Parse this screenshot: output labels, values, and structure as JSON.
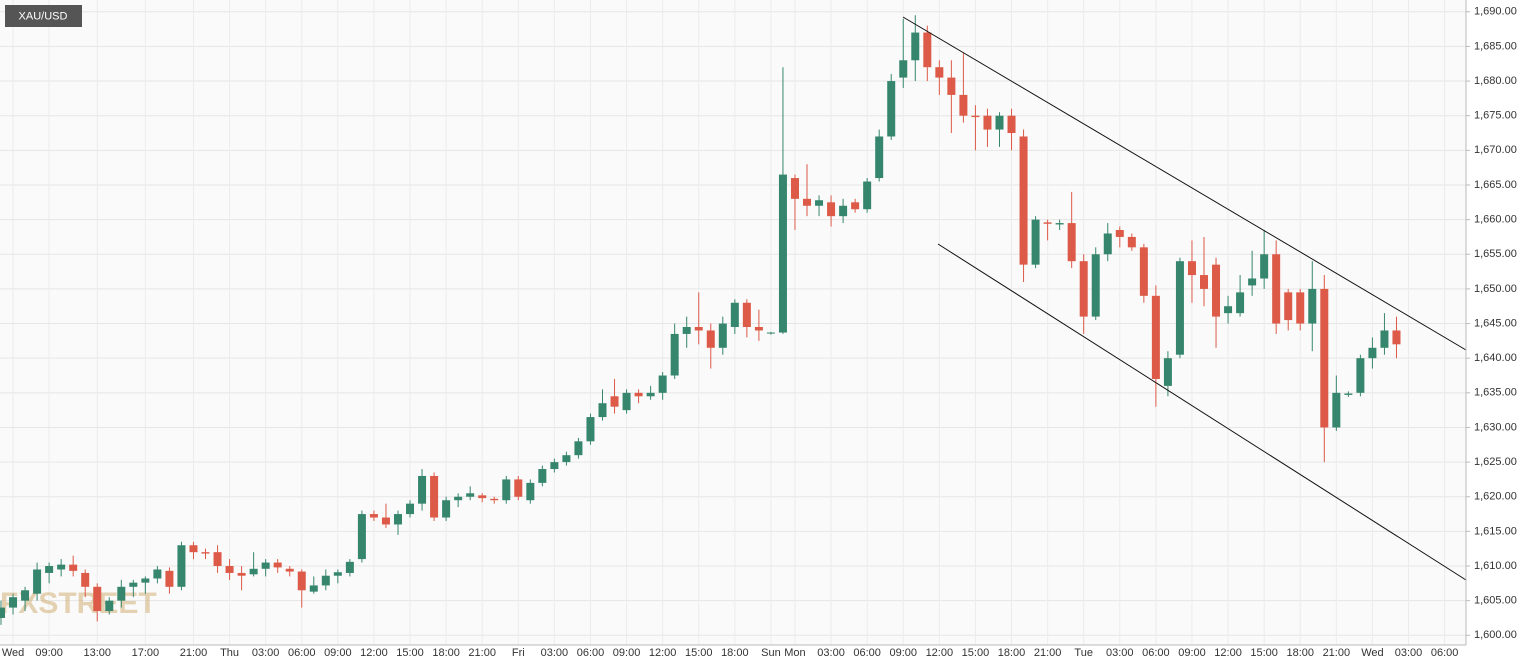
{
  "chart_data": {
    "type": "candlestick",
    "title": "XAU/USD",
    "watermark": "FXSTREET",
    "up_color": "#36866e",
    "down_color": "#dc5a47",
    "grid": true,
    "categories": [
      null,
      "Wed",
      null,
      null,
      "09:00",
      null,
      null,
      null,
      "13:00",
      null,
      null,
      null,
      "17:00",
      null,
      null,
      null,
      "21:00",
      null,
      null,
      "Thu",
      null,
      null,
      "03:00",
      null,
      null,
      "06:00",
      null,
      null,
      "09:00",
      null,
      null,
      "12:00",
      null,
      null,
      "15:00",
      null,
      null,
      "18:00",
      null,
      null,
      "21:00",
      null,
      null,
      "Fri",
      null,
      null,
      "03:00",
      null,
      null,
      "06:00",
      null,
      null,
      "09:00",
      null,
      null,
      "12:00",
      null,
      null,
      "15:00",
      null,
      null,
      "18:00",
      null,
      null,
      "Sun",
      null,
      "Mon",
      null,
      null,
      "03:00",
      null,
      null,
      "06:00",
      null,
      null,
      "09:00",
      null,
      null,
      "12:00",
      null,
      null,
      "15:00",
      null,
      null,
      "18:00",
      null,
      null,
      "21:00",
      null,
      null,
      "Tue",
      null,
      null,
      "03:00",
      null,
      null,
      "06:00",
      null,
      null,
      "09:00",
      null,
      null,
      "12:00",
      null,
      null,
      "15:00",
      null,
      null,
      "18:00",
      null,
      null,
      "21:00",
      null,
      null,
      "Wed",
      null,
      null,
      "03:00",
      null,
      null,
      "06:00"
    ],
    "open": [
      1602.5,
      1604,
      1605,
      1606,
      1609,
      1609.5,
      1610.2,
      1609,
      1607,
      1603.5,
      1605,
      1607,
      1607.6,
      1608.2,
      1609.3,
      1607,
      1613,
      1612,
      1612,
      1610,
      1609,
      1608.8,
      1609.6,
      1610.5,
      1609.6,
      1609.2,
      1606.3,
      1607.2,
      1608.6,
      1609,
      1611,
      1617.5,
      1617,
      1616,
      1617.5,
      1619,
      1623,
      1617,
      1619.5,
      1620,
      1620.2,
      1619.7,
      1619.5,
      1622.5,
      1619.5,
      1622,
      1624,
      1625,
      1626,
      1628,
      1631.5,
      1634.5,
      1632.5,
      1635,
      1634.5,
      1635,
      1637.5,
      1643.5,
      1644.5,
      1644,
      1641.5,
      1644.5,
      1648,
      1644.5,
      1643.6,
      1643.7,
      1666,
      1663,
      1662,
      1662.5,
      1660.5,
      1662.5,
      1661.5,
      1666,
      1672,
      1680.5,
      1683,
      1687,
      1682,
      1680.5,
      1678,
      1675,
      1675,
      1673,
      1675,
      1672,
      1653.5,
      1659.6,
      1659.3,
      1659.5,
      1654,
      1646,
      1655,
      1658.5,
      1657.5,
      1656,
      1649,
      1636,
      1640.5,
      1654,
      1652,
      1653.5,
      1646.5,
      1646.5,
      1650.5,
      1651.5,
      1655,
      1649.5,
      1649.5,
      1645,
      1650,
      1630,
      1634.7,
      1635,
      1640,
      1641.5,
      1644,
      null,
      null,
      null,
      null
    ],
    "high": [
      1605,
      1606,
      1607,
      1610.5,
      1610.5,
      1611,
      1611.5,
      1609.5,
      1607.5,
      1605.5,
      1608,
      1608,
      1608.5,
      1610,
      1609.8,
      1613.5,
      1613.5,
      1612.5,
      1613,
      1611,
      1610,
      1612,
      1611,
      1611,
      1610,
      1609.5,
      1608.5,
      1609.5,
      1609.5,
      1611,
      1618,
      1618,
      1619,
      1618,
      1619.5,
      1624,
      1623.5,
      1620,
      1620.5,
      1621.5,
      1620.5,
      1620,
      1623,
      1623,
      1622.5,
      1624.5,
      1625.5,
      1626.5,
      1628.5,
      1632,
      1635.5,
      1637,
      1635.5,
      1635.5,
      1636,
      1638,
      1645,
      1646,
      1649.5,
      1645,
      1646,
      1648.5,
      1648.5,
      1647,
      1643.8,
      1682,
      1666.5,
      1668,
      1663.5,
      1663.5,
      1663,
      1663,
      1666,
      1673,
      1681,
      1689,
      1689.5,
      1688,
      1683,
      1683,
      1684,
      1676.5,
      1676,
      1675.5,
      1676,
      1673,
      1660.5,
      1660,
      1660,
      1664,
      1655,
      1656,
      1659.5,
      1659,
      1658,
      1656.5,
      1650.5,
      1641,
      1654.5,
      1657,
      1657.5,
      1654.5,
      1649,
      1652,
      1655.5,
      1658.5,
      1657,
      1650,
      1650,
      1654,
      1652,
      1637.5,
      1635.2,
      1640.5,
      1643,
      1646.5,
      1646,
      null,
      null,
      null,
      null
    ],
    "low": [
      1601.5,
      1603,
      1603.5,
      1605,
      1607.5,
      1608.5,
      1608.5,
      1605.5,
      1602,
      1603,
      1604,
      1605.5,
      1606,
      1607.5,
      1606,
      1606.5,
      1611,
      1611,
      1609,
      1608,
      1606.5,
      1608.5,
      1608.5,
      1609,
      1608.5,
      1604,
      1606,
      1606.5,
      1607.5,
      1608.5,
      1610.5,
      1616.5,
      1615.5,
      1614.5,
      1617,
      1618,
      1616.5,
      1616.5,
      1618.5,
      1619.5,
      1619.2,
      1619,
      1619,
      1619.5,
      1619,
      1621.5,
      1623.5,
      1624.5,
      1625.5,
      1627.5,
      1631,
      1632,
      1632,
      1633.5,
      1634,
      1634,
      1637,
      1641.5,
      1642,
      1638.5,
      1640.5,
      1643.5,
      1643,
      1642.5,
      1643.4,
      1643.5,
      1658.5,
      1660.5,
      1660.5,
      1659,
      1659.5,
      1661,
      1661,
      1665.5,
      1671.5,
      1679,
      1680,
      1680,
      1678,
      1672.5,
      1674,
      1670,
      1670.5,
      1670.5,
      1670,
      1651,
      1653,
      1657,
      1658.5,
      1653,
      1643.5,
      1645.5,
      1654,
      1656,
      1655.5,
      1648,
      1633,
      1634.5,
      1640,
      1648,
      1647.5,
      1641.5,
      1645,
      1646,
      1649,
      1650,
      1643.5,
      1644,
      1644,
      1641,
      1625,
      1629.5,
      1634.4,
      1634.5,
      1638.5,
      1640.5,
      1640,
      null,
      null,
      null,
      null
    ],
    "close": [
      1604,
      1605.5,
      1606.5,
      1609.5,
      1610,
      1610.2,
      1609.3,
      1607,
      1603.5,
      1605,
      1607,
      1607.6,
      1608.2,
      1609.5,
      1607,
      1613,
      1612,
      1611.8,
      1610,
      1609,
      1608.6,
      1609.6,
      1610.5,
      1609.8,
      1609.2,
      1606.5,
      1607.2,
      1608.6,
      1609.1,
      1610.6,
      1617.5,
      1617,
      1616,
      1617.5,
      1619,
      1623,
      1617,
      1619.5,
      1620,
      1620.5,
      1619.8,
      1619.5,
      1622.5,
      1620,
      1622,
      1624,
      1625,
      1626,
      1628,
      1631.5,
      1633.5,
      1633,
      1635,
      1634.5,
      1635,
      1637.5,
      1643.5,
      1644.5,
      1644,
      1641.5,
      1645,
      1648,
      1644.5,
      1644,
      1643.7,
      1666.5,
      1663,
      1662,
      1662.8,
      1660.5,
      1662,
      1661.5,
      1665.5,
      1672,
      1680,
      1683,
      1687,
      1682,
      1680.5,
      1678,
      1675,
      1674.8,
      1673,
      1675,
      1672.5,
      1653.5,
      1660,
      1659.4,
      1659.5,
      1654,
      1646,
      1655,
      1658,
      1657.5,
      1656,
      1649,
      1637,
      1640,
      1654,
      1652,
      1650,
      1646,
      1647.5,
      1649.5,
      1651.5,
      1655,
      1645,
      1645.5,
      1645,
      1650,
      1630,
      1635,
      1634.9,
      1640,
      1641.5,
      1644,
      1642,
      null,
      null,
      null,
      null
    ],
    "ylim": [
      1598.6,
      1691.7
    ],
    "yticks": [
      {
        "value": 1600,
        "label": "1,600.00"
      },
      {
        "value": 1605,
        "label": "1,605.00"
      },
      {
        "value": 1610,
        "label": "1,610.00"
      },
      {
        "value": 1615,
        "label": "1,615.00"
      },
      {
        "value": 1620,
        "label": "1,620.00"
      },
      {
        "value": 1625,
        "label": "1,625.00"
      },
      {
        "value": 1630,
        "label": "1,630.00"
      },
      {
        "value": 1635,
        "label": "1,635.00"
      },
      {
        "value": 1640,
        "label": "1,640.00"
      },
      {
        "value": 1645,
        "label": "1,645.00"
      },
      {
        "value": 1650,
        "label": "1,650.00"
      },
      {
        "value": 1655,
        "label": "1,655.00"
      },
      {
        "value": 1660,
        "label": "1,660.00"
      },
      {
        "value": 1665,
        "label": "1,665.00"
      },
      {
        "value": 1670,
        "label": "1,670.00"
      },
      {
        "value": 1675,
        "label": "1,675.00"
      },
      {
        "value": 1680,
        "label": "1,680.00"
      },
      {
        "value": 1685,
        "label": "1,685.00"
      },
      {
        "value": 1690,
        "label": "1,690.00"
      }
    ]
  }
}
